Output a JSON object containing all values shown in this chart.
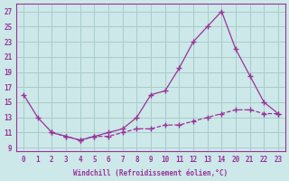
{
  "background_color": "#cce8e8",
  "grid_color": "#aacccc",
  "line_color": "#993399",
  "xlabel": "Windchill (Refroidissement éolien,°C)",
  "xlim": [
    -0.5,
    23.5
  ],
  "ylim": [
    8.5,
    28
  ],
  "xticks": [
    0,
    1,
    2,
    3,
    4,
    5,
    6,
    7,
    8,
    9,
    10,
    11,
    12,
    13,
    14,
    20,
    21,
    22,
    23
  ],
  "xtick_labels": [
    "0",
    "1",
    "2",
    "3",
    "4",
    "5",
    "6",
    "7",
    "8",
    "9",
    "10",
    "11",
    "12",
    "13",
    "14",
    "20",
    "21",
    "22",
    "23"
  ],
  "yticks": [
    9,
    11,
    13,
    15,
    17,
    19,
    21,
    23,
    25,
    27
  ],
  "line1_x": [
    0,
    1,
    2,
    3,
    4,
    5,
    6,
    7,
    8,
    9,
    10,
    11,
    12,
    13,
    14,
    20,
    21,
    22,
    23
  ],
  "line1_y": [
    16,
    13,
    11,
    10.5,
    10,
    10.5,
    11,
    11.5,
    13,
    16,
    16.5,
    19.5,
    23,
    25,
    27,
    22,
    18.5,
    15,
    13.5
  ],
  "line2_x": [
    2,
    3,
    4,
    5,
    6,
    7,
    8,
    9,
    10,
    11,
    12,
    13,
    14,
    20,
    21,
    22,
    23
  ],
  "line2_y": [
    11,
    10.5,
    10,
    10.5,
    10.5,
    11,
    11.5,
    11.5,
    12,
    12,
    12.5,
    13,
    13.5,
    14,
    14,
    13.5,
    13.5
  ],
  "line1_style": "-",
  "line2_style": "--"
}
